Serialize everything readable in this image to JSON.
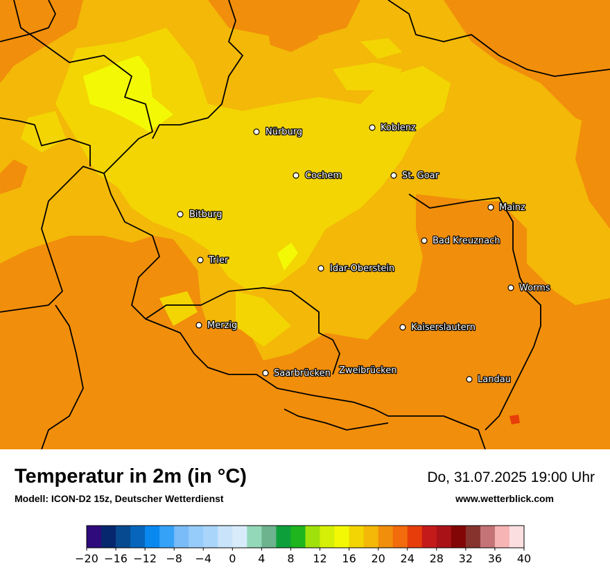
{
  "map": {
    "title": "Temperatur in 2m (in °C)",
    "model": "Modell: ICON-D2 15z, Deutscher Wetterdienst",
    "valid_time": "Do, 31.07.2025 19:00 Uhr",
    "website": "www.wetterblick.com",
    "cities": [
      {
        "name": "Nürburg",
        "marker": "city-dot"
      },
      {
        "name": "Koblenz",
        "marker": "city-dot"
      },
      {
        "name": "Cochem",
        "marker": "city-dot"
      },
      {
        "name": "St. Goar",
        "marker": "city-dot"
      },
      {
        "name": "Mainz",
        "marker": "city-dot"
      },
      {
        "name": "Bitburg",
        "marker": "city-dot"
      },
      {
        "name": "Bad Kreuznach",
        "marker": "city-dot"
      },
      {
        "name": "Trier",
        "marker": "city-dot"
      },
      {
        "name": "Idar-Oberstein",
        "marker": "city-dot"
      },
      {
        "name": "Worms",
        "marker": "city-dot"
      },
      {
        "name": "Merzig",
        "marker": "city-dot"
      },
      {
        "name": "Kaiserslautern",
        "marker": "city-dot"
      },
      {
        "name": "Saarbrücken",
        "marker": "city-dot"
      },
      {
        "name": "Zweibrücken",
        "marker": "city-dot"
      },
      {
        "name": "Landau",
        "marker": "city-dot"
      }
    ]
  },
  "legend": {
    "unit": "°C",
    "min": -20,
    "max": 40,
    "step": 2,
    "tick_labels": [
      "−20",
      "−16",
      "−12",
      "−8",
      "−4",
      "0",
      "4",
      "8",
      "12",
      "16",
      "20",
      "24",
      "28",
      "32",
      "36",
      "40"
    ],
    "colors": [
      "#2e0a7c",
      "#06276e",
      "#074a8f",
      "#0766bb",
      "#0989f0",
      "#36a2f7",
      "#79bcf8",
      "#96ccf9",
      "#a9d5fa",
      "#c9e3fb",
      "#d8ebfb",
      "#93d8b8",
      "#6cb38e",
      "#0da03a",
      "#1eb51e",
      "#a0e10c",
      "#d6ef06",
      "#f3f905",
      "#f3d503",
      "#f3b808",
      "#f18e0b",
      "#f26b0c",
      "#e63d0a",
      "#c41a1a",
      "#a91217",
      "#820605",
      "#86332e",
      "#c47476",
      "#f7b4b4",
      "#fbdfe0"
    ]
  }
}
